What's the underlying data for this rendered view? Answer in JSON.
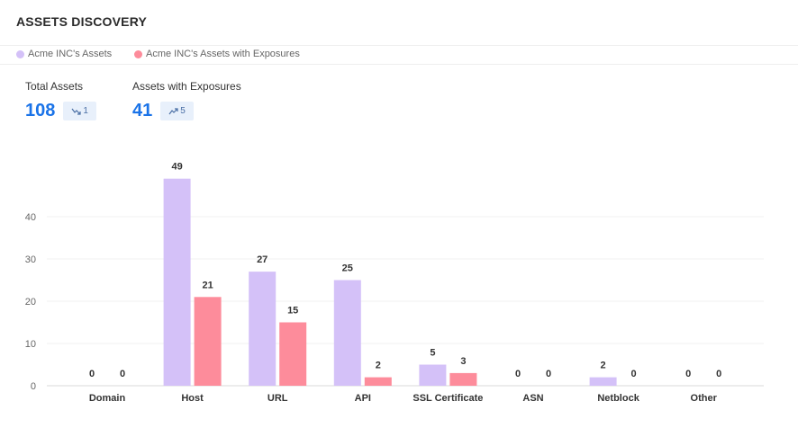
{
  "header": {
    "title": "ASSETS DISCOVERY"
  },
  "legend": [
    {
      "label": "Acme INC's Assets",
      "color": "#d4c1f8"
    },
    {
      "label": "Acme INC's Assets with Exposures",
      "color": "#fd8c9b"
    }
  ],
  "stats": {
    "total": {
      "label": "Total Assets",
      "value": "108",
      "change": "1",
      "trend_icon": "trend-down-icon"
    },
    "exposed": {
      "label": "Assets with Exposures",
      "value": "41",
      "change": "5",
      "trend_icon": "trend-up-icon"
    }
  },
  "chart_data": {
    "type": "bar",
    "categories": [
      "Domain",
      "Host",
      "URL",
      "API",
      "SSL Certificate",
      "ASN",
      "Netblock",
      "Other"
    ],
    "series": [
      {
        "name": "Acme INC's Assets",
        "color": "#d4c1f8",
        "values": [
          0,
          49,
          27,
          25,
          5,
          0,
          2,
          0
        ]
      },
      {
        "name": "Acme INC's Assets with Exposures",
        "color": "#fd8c9b",
        "values": [
          0,
          21,
          15,
          2,
          3,
          0,
          0,
          0
        ]
      }
    ],
    "yticks": [
      "0",
      "10",
      "20",
      "30",
      "40"
    ],
    "ylim": [
      0,
      50
    ],
    "grid": true,
    "legend_position": "top-left",
    "xlabel": "",
    "ylabel": ""
  }
}
